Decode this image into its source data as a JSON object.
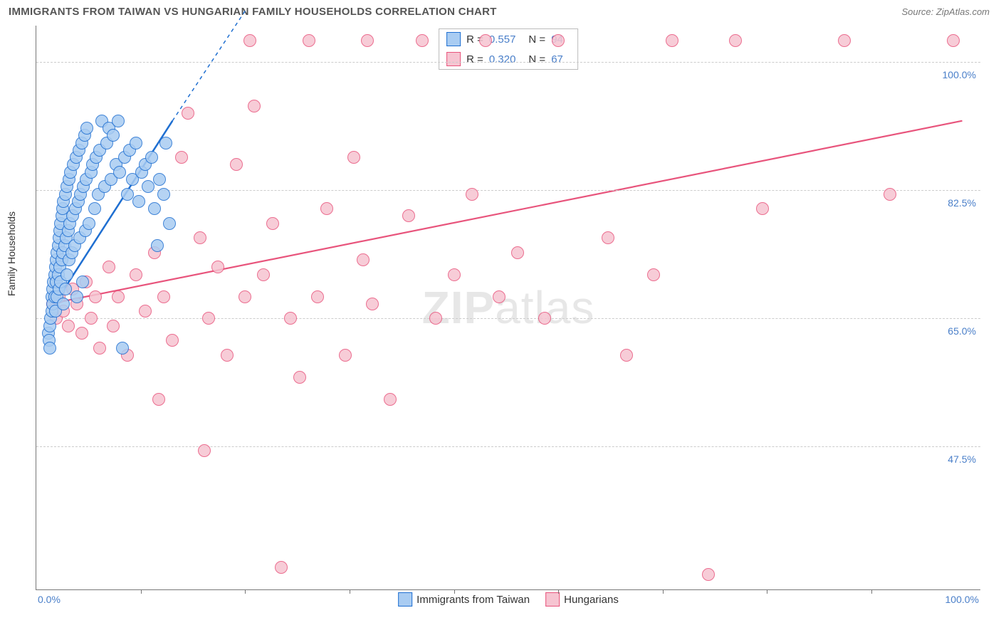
{
  "title": "IMMIGRANTS FROM TAIWAN VS HUNGARIAN FAMILY HOUSEHOLDS CORRELATION CHART",
  "source": "Source: ZipAtlas.com",
  "watermark_zip": "ZIP",
  "watermark_atlas": "atlas",
  "chart": {
    "type": "scatter",
    "y_label": "Family Households",
    "background_color": "#ffffff",
    "grid_color": "#cccccc",
    "axis_color": "#777777",
    "tick_label_color": "#4a7fc9",
    "tick_label_fontsize": 14,
    "x_range": [
      -1,
      103
    ],
    "y_range": [
      28,
      105
    ],
    "x_min_label": "0.0%",
    "x_max_label": "100.0%",
    "y_gridlines": [
      47.5,
      65.0,
      82.5,
      100.0
    ],
    "y_tick_labels": [
      "47.5%",
      "65.0%",
      "82.5%",
      "100.0%"
    ],
    "x_tick_positions": [
      10.5,
      22,
      33.5,
      45,
      56.5,
      68,
      79.5,
      91
    ],
    "marker_radius": 8,
    "marker_stroke_width": 1.3,
    "marker_fill_opacity": 0.25,
    "series": [
      {
        "name": "Immigrants from Taiwan",
        "stroke": "#1f6fd1",
        "fill": "#a9ccf2",
        "R": "0.557",
        "N": "94",
        "trend": {
          "x1": 0.5,
          "y1": 66,
          "x2": 14,
          "y2": 92,
          "width": 2.5,
          "dash_ext_x": 22,
          "dash_ext_y": 107
        },
        "points": [
          [
            0.3,
            63
          ],
          [
            0.4,
            62
          ],
          [
            0.5,
            61
          ],
          [
            0.5,
            64
          ],
          [
            0.6,
            65
          ],
          [
            0.7,
            66
          ],
          [
            0.7,
            68
          ],
          [
            0.8,
            69
          ],
          [
            0.8,
            67
          ],
          [
            0.9,
            70
          ],
          [
            1.0,
            71
          ],
          [
            1.0,
            68
          ],
          [
            1.1,
            72
          ],
          [
            1.1,
            66
          ],
          [
            1.2,
            73
          ],
          [
            1.2,
            70
          ],
          [
            1.3,
            74
          ],
          [
            1.3,
            68
          ],
          [
            1.4,
            75
          ],
          [
            1.4,
            71
          ],
          [
            1.5,
            76
          ],
          [
            1.5,
            69
          ],
          [
            1.6,
            77
          ],
          [
            1.6,
            72
          ],
          [
            1.7,
            78
          ],
          [
            1.7,
            70
          ],
          [
            1.8,
            79
          ],
          [
            1.8,
            73
          ],
          [
            1.9,
            80
          ],
          [
            1.9,
            74
          ],
          [
            2.0,
            67
          ],
          [
            2.0,
            81
          ],
          [
            2.1,
            75
          ],
          [
            2.2,
            82
          ],
          [
            2.2,
            69
          ],
          [
            2.3,
            76
          ],
          [
            2.4,
            83
          ],
          [
            2.4,
            71
          ],
          [
            2.5,
            77
          ],
          [
            2.6,
            84
          ],
          [
            2.6,
            73
          ],
          [
            2.7,
            78
          ],
          [
            2.8,
            85
          ],
          [
            2.9,
            74
          ],
          [
            3.0,
            79
          ],
          [
            3.1,
            86
          ],
          [
            3.2,
            75
          ],
          [
            3.3,
            80
          ],
          [
            3.4,
            87
          ],
          [
            3.5,
            68
          ],
          [
            3.6,
            81
          ],
          [
            3.7,
            88
          ],
          [
            3.8,
            76
          ],
          [
            3.9,
            82
          ],
          [
            4.0,
            89
          ],
          [
            4.1,
            70
          ],
          [
            4.2,
            83
          ],
          [
            4.3,
            90
          ],
          [
            4.4,
            77
          ],
          [
            4.5,
            84
          ],
          [
            4.6,
            91
          ],
          [
            4.8,
            78
          ],
          [
            5.0,
            85
          ],
          [
            5.2,
            86
          ],
          [
            5.4,
            80
          ],
          [
            5.6,
            87
          ],
          [
            5.8,
            82
          ],
          [
            6.0,
            88
          ],
          [
            6.2,
            92
          ],
          [
            6.5,
            83
          ],
          [
            6.8,
            89
          ],
          [
            7.0,
            91
          ],
          [
            7.2,
            84
          ],
          [
            7.5,
            90
          ],
          [
            7.8,
            86
          ],
          [
            8.0,
            92
          ],
          [
            8.2,
            85
          ],
          [
            8.5,
            61
          ],
          [
            8.7,
            87
          ],
          [
            9.0,
            82
          ],
          [
            9.3,
            88
          ],
          [
            9.6,
            84
          ],
          [
            10.0,
            89
          ],
          [
            10.3,
            81
          ],
          [
            10.6,
            85
          ],
          [
            11.0,
            86
          ],
          [
            11.3,
            83
          ],
          [
            11.7,
            87
          ],
          [
            12.0,
            80
          ],
          [
            12.3,
            75
          ],
          [
            12.6,
            84
          ],
          [
            13.0,
            82
          ],
          [
            13.3,
            89
          ],
          [
            13.7,
            78
          ]
        ]
      },
      {
        "name": "Hungarians",
        "stroke": "#e8547c",
        "fill": "#f6c4d1",
        "R": "0.320",
        "N": "67",
        "trend": {
          "x1": 0.5,
          "y1": 67,
          "x2": 101,
          "y2": 92,
          "width": 2.2
        },
        "points": [
          [
            0.8,
            67
          ],
          [
            1.2,
            65
          ],
          [
            1.5,
            68
          ],
          [
            2.0,
            66
          ],
          [
            2.5,
            64
          ],
          [
            3.0,
            69
          ],
          [
            3.5,
            67
          ],
          [
            4.0,
            63
          ],
          [
            4.5,
            70
          ],
          [
            5.0,
            65
          ],
          [
            5.5,
            68
          ],
          [
            6.0,
            61
          ],
          [
            7.0,
            72
          ],
          [
            7.5,
            64
          ],
          [
            8.0,
            68
          ],
          [
            9.0,
            60
          ],
          [
            10.0,
            71
          ],
          [
            11.0,
            66
          ],
          [
            12.0,
            74
          ],
          [
            13.0,
            68
          ],
          [
            12.5,
            54
          ],
          [
            14.0,
            62
          ],
          [
            15.0,
            87
          ],
          [
            15.7,
            93
          ],
          [
            17.0,
            76
          ],
          [
            17.5,
            47
          ],
          [
            18.0,
            65
          ],
          [
            19.0,
            72
          ],
          [
            20.0,
            60
          ],
          [
            21.0,
            86
          ],
          [
            22.0,
            68
          ],
          [
            22.5,
            103
          ],
          [
            23.0,
            94
          ],
          [
            24.0,
            71
          ],
          [
            25.0,
            78
          ],
          [
            26.0,
            31
          ],
          [
            27.0,
            65
          ],
          [
            28.0,
            57
          ],
          [
            29.0,
            103
          ],
          [
            30.0,
            68
          ],
          [
            31.0,
            80
          ],
          [
            33.0,
            60
          ],
          [
            34.0,
            87
          ],
          [
            35.0,
            73
          ],
          [
            35.5,
            103
          ],
          [
            36.0,
            67
          ],
          [
            38.0,
            54
          ],
          [
            40.0,
            79
          ],
          [
            41.5,
            103
          ],
          [
            43.0,
            65
          ],
          [
            45.0,
            71
          ],
          [
            47.0,
            82
          ],
          [
            48.5,
            103
          ],
          [
            50.0,
            68
          ],
          [
            52.0,
            74
          ],
          [
            55.0,
            65
          ],
          [
            56.5,
            103
          ],
          [
            62.0,
            76
          ],
          [
            64.0,
            60
          ],
          [
            67.0,
            71
          ],
          [
            69.0,
            103
          ],
          [
            73.0,
            30
          ],
          [
            76.0,
            103
          ],
          [
            79.0,
            80
          ],
          [
            88.0,
            103
          ],
          [
            93.0,
            82
          ],
          [
            100.0,
            103
          ]
        ]
      }
    ]
  },
  "legend": {
    "item1": "Immigrants from Taiwan",
    "item2": "Hungarians"
  }
}
